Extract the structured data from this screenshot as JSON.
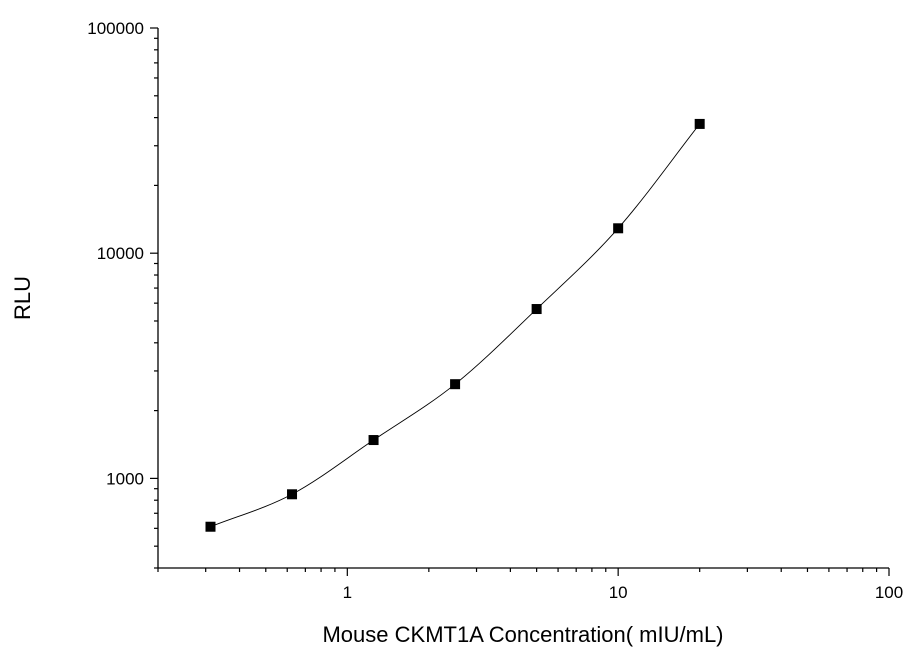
{
  "chart_data": {
    "type": "scatter",
    "title": "",
    "xlabel": "Mouse CKMT1A Concentration( mIU/mL)",
    "ylabel": "RLU",
    "x_scale": "log",
    "y_scale": "log",
    "xlim": [
      0.2,
      100
    ],
    "ylim": [
      400,
      100000
    ],
    "x_ticks": [
      "1",
      "10",
      "100"
    ],
    "y_ticks": [
      "1000",
      "10000",
      "100000"
    ],
    "grid": false,
    "series": [
      {
        "x": [
          0.3125,
          0.625,
          1.25,
          2.5,
          5,
          10,
          20
        ],
        "y": [
          610,
          850,
          1480,
          2620,
          5650,
          12900,
          37500
        ],
        "marker": "square",
        "line": "smooth",
        "color": "#000000"
      }
    ]
  }
}
